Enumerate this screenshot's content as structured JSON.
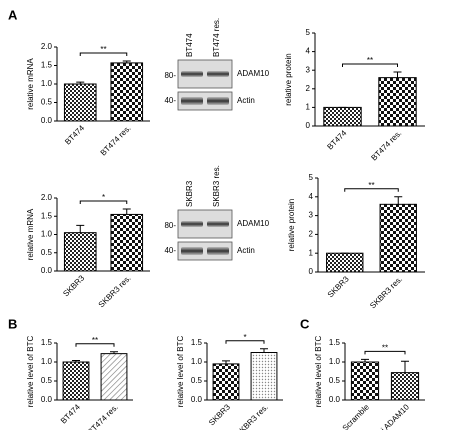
{
  "panel_labels": [
    "A",
    "B",
    "C"
  ],
  "chart_data": [
    {
      "type": "bar",
      "ylabel": "relative mRNA",
      "categories": [
        "BT474",
        "BT474 res."
      ],
      "values": [
        1.0,
        1.57
      ],
      "errors": [
        0.05,
        0.05
      ],
      "ylim": [
        0,
        2
      ],
      "yticks": [
        {
          "value": 0,
          "label": "0.0"
        },
        0.5,
        {
          "value": 1,
          "label": "1.0"
        },
        1.5,
        {
          "value": 2,
          "label": "2.0"
        }
      ],
      "significance": "**"
    },
    {
      "type": "bar",
      "ylabel": "relative protein",
      "categories": [
        "BT474",
        "BT474 res."
      ],
      "values": [
        1.0,
        2.6
      ],
      "errors": [
        0.0,
        0.3
      ],
      "ylim": [
        0,
        5
      ],
      "yticks": [
        0,
        1,
        2,
        3,
        4,
        5
      ],
      "significance": "**"
    },
    {
      "type": "bar",
      "ylabel": "relative mRNA",
      "categories": [
        "SKBR3",
        "SKBR3 res."
      ],
      "values": [
        1.05,
        1.55
      ],
      "errors": [
        0.2,
        0.15
      ],
      "ylim": [
        0,
        2
      ],
      "yticks": [
        {
          "value": 0,
          "label": "0.0"
        },
        0.5,
        {
          "value": 1,
          "label": "1.0"
        },
        1.5,
        {
          "value": 2,
          "label": "2.0"
        }
      ],
      "significance": "*"
    },
    {
      "type": "bar",
      "ylabel": "relative protein",
      "categories": [
        "SKBR3",
        "SKBR3 res."
      ],
      "values": [
        1.0,
        3.6
      ],
      "errors": [
        0.0,
        0.4
      ],
      "ylim": [
        0,
        5
      ],
      "yticks": [
        0,
        1,
        2,
        3,
        4,
        5
      ],
      "significance": "**"
    },
    {
      "type": "bar",
      "ylabel": "relative level of BTC",
      "categories": [
        "BT474",
        "BT474 res."
      ],
      "values": [
        1.0,
        1.22
      ],
      "errors": [
        0.04,
        0.05
      ],
      "ylim": [
        0,
        1.5
      ],
      "yticks": [
        {
          "value": 0,
          "label": "0.0"
        },
        0.5,
        {
          "value": 1,
          "label": "1.0"
        },
        1.5
      ],
      "significance": "**"
    },
    {
      "type": "bar",
      "ylabel": "relative level of BTC",
      "categories": [
        "SKBR3",
        "SKBR3 res."
      ],
      "values": [
        0.95,
        1.25
      ],
      "errors": [
        0.08,
        0.1
      ],
      "ylim": [
        0,
        1.5
      ],
      "yticks": [
        {
          "value": 0,
          "label": "0.0"
        },
        0.5,
        {
          "value": 1,
          "label": "1.0"
        },
        1.5
      ],
      "significance": "*"
    },
    {
      "type": "bar",
      "ylabel": "relative level of BTC",
      "categories": [
        "Scramble",
        "si ADAM10"
      ],
      "values": [
        1.0,
        0.72
      ],
      "errors": [
        0.07,
        0.3
      ],
      "ylim": [
        0,
        1.5
      ],
      "yticks": [
        {
          "value": 0,
          "label": "0.0"
        },
        0.5,
        {
          "value": 1,
          "label": "1.0"
        },
        1.5
      ],
      "significance": "**"
    }
  ],
  "blots": [
    {
      "lanes": [
        "BT474",
        "BT474 res."
      ],
      "bands": [
        "ADAM10",
        "Actin"
      ],
      "markers": [
        "80-",
        "40-"
      ]
    },
    {
      "lanes": [
        "SKBR3",
        "SKBR3 res."
      ],
      "bands": [
        "ADAM10",
        "Actin"
      ],
      "markers": [
        "80-",
        "40-"
      ]
    }
  ]
}
